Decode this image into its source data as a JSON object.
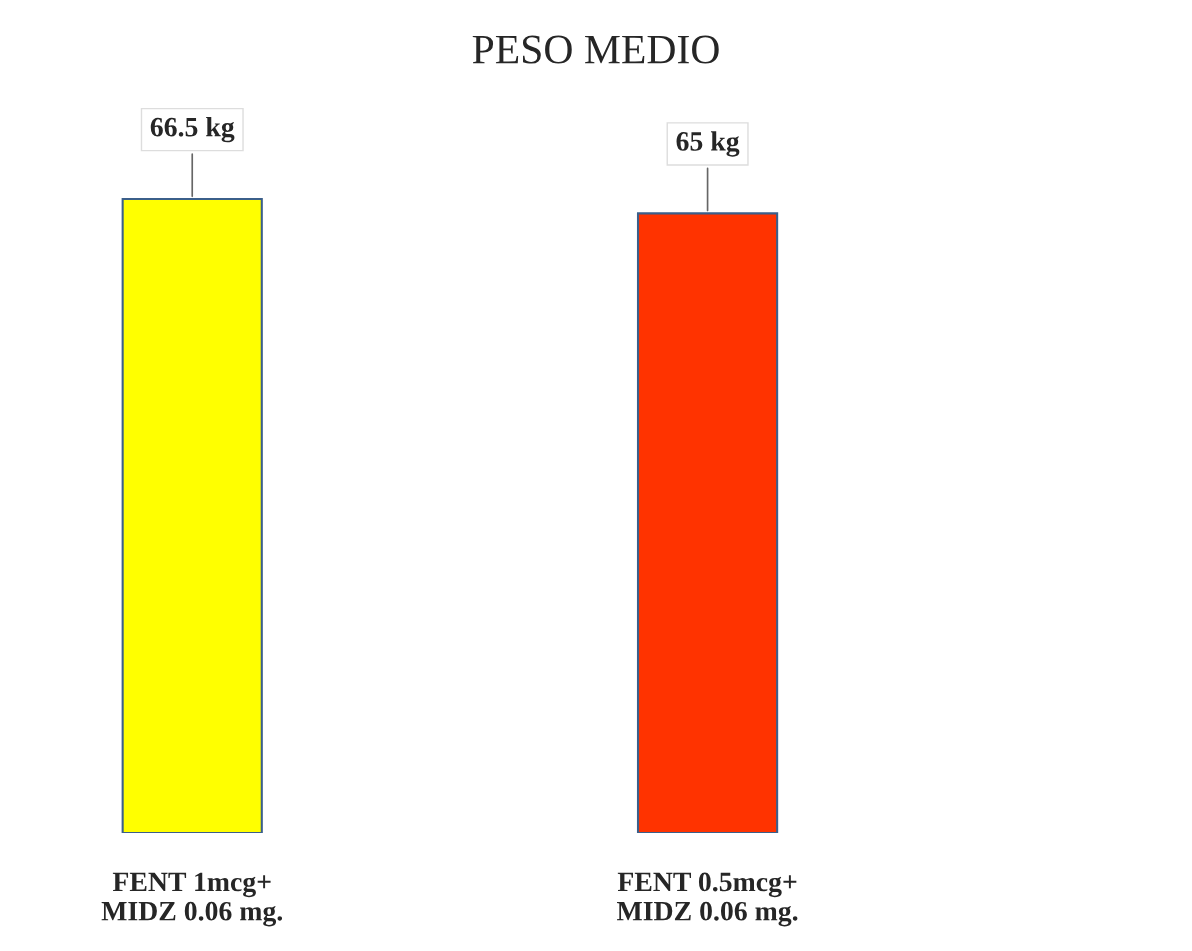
{
  "chart_data": {
    "type": "bar",
    "title": "PESO MEDIO",
    "categories": [
      "FENT 1mcg+\nMIDZ 0.06 mg.",
      "FENT 0.5mcg+\nMIDZ 0.06 mg."
    ],
    "values": [
      66.5,
      65
    ],
    "colors": [
      "#ffff00",
      "#ff3300"
    ],
    "value_labels": [
      "66.5 kg",
      "65 kg"
    ],
    "tick_labels": "x",
    "grid": false,
    "legend": false
  }
}
